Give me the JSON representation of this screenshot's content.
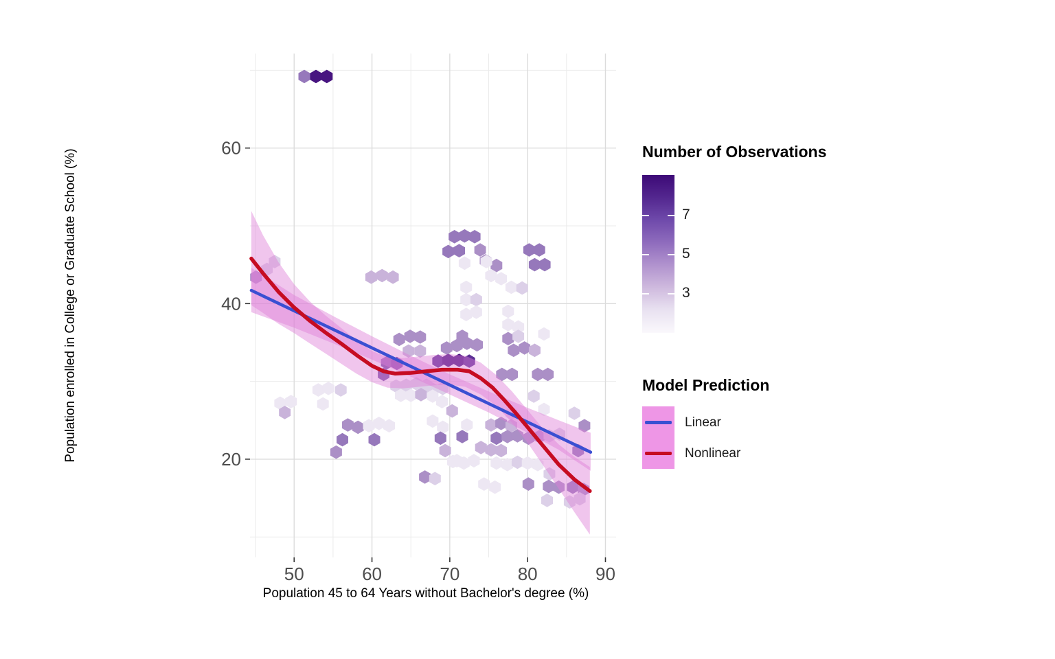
{
  "chart_data": {
    "type": "hexbin",
    "x_label": "Population 45 to 64 Years without Bachelor's degree (%)",
    "y_label": "Population enrolled in College or Graduate School (%)",
    "x_domain": [
      44.33,
      91.37
    ],
    "y_domain": [
      7.37,
      72.15
    ],
    "x_ticks_major": {
      "values": [
        50,
        60,
        70,
        80,
        90
      ],
      "labels": [
        "50",
        "60",
        "70",
        "80",
        "90"
      ]
    },
    "x_ticks_minor": [
      45,
      55,
      65,
      75,
      85
    ],
    "y_ticks_major": {
      "values": [
        20,
        40,
        60
      ],
      "labels": [
        "20",
        "40",
        "60"
      ]
    },
    "y_ticks_minor": [
      10,
      30,
      50,
      70
    ],
    "grid_major_color": "#dcdcdc",
    "grid_minor_color": "#ebebeb",
    "tick_mark_color": "#333333",
    "tick_label_color": "#4d4d4d",
    "hex_width_units": 1.5,
    "count_colors": {
      "1": "#ede7f3",
      "2": "#dcd0e8",
      "3": "#c9b3da",
      "4": "#ab8fc6",
      "5": "#9678bb",
      "6": "#7b54a6",
      "7": "#5d3095",
      "8": "#471480"
    },
    "hexes": [
      [
        51.3,
        69.2,
        5
      ],
      [
        52.8,
        69.2,
        8
      ],
      [
        54.2,
        69.2,
        8
      ],
      [
        45.1,
        43.4,
        4
      ],
      [
        46.5,
        44.4,
        2
      ],
      [
        47.5,
        45.4,
        2
      ],
      [
        59.9,
        43.4,
        3
      ],
      [
        61.3,
        43.6,
        3
      ],
      [
        62.7,
        43.4,
        3
      ],
      [
        70.6,
        48.6,
        5
      ],
      [
        71.9,
        48.7,
        5
      ],
      [
        73.2,
        48.6,
        5
      ],
      [
        69.8,
        46.7,
        5
      ],
      [
        71.2,
        46.8,
        5
      ],
      [
        73.9,
        46.9,
        4
      ],
      [
        71.9,
        45.2,
        1
      ],
      [
        74.6,
        45.5,
        4
      ],
      [
        76.0,
        44.9,
        4
      ],
      [
        80.2,
        46.9,
        5
      ],
      [
        81.5,
        46.9,
        5
      ],
      [
        80.9,
        45.0,
        5
      ],
      [
        82.2,
        45.0,
        5
      ],
      [
        74.7,
        45.4,
        1
      ],
      [
        75.3,
        43.6,
        1
      ],
      [
        76.6,
        43.2,
        1
      ],
      [
        77.9,
        42.1,
        1
      ],
      [
        79.3,
        42.0,
        2
      ],
      [
        72.1,
        42.1,
        1
      ],
      [
        72.1,
        40.5,
        1
      ],
      [
        73.4,
        40.5,
        2
      ],
      [
        72.1,
        38.6,
        1
      ],
      [
        73.4,
        38.9,
        1
      ],
      [
        77.5,
        39.0,
        1
      ],
      [
        77.5,
        37.3,
        1
      ],
      [
        78.8,
        37.0,
        1
      ],
      [
        77.5,
        35.5,
        4
      ],
      [
        78.8,
        35.8,
        2
      ],
      [
        78.2,
        34.0,
        4
      ],
      [
        79.6,
        34.3,
        4
      ],
      [
        80.9,
        34.0,
        3
      ],
      [
        82.1,
        36.1,
        1
      ],
      [
        63.5,
        35.4,
        4
      ],
      [
        64.9,
        35.8,
        4
      ],
      [
        66.2,
        35.7,
        4
      ],
      [
        64.7,
        33.9,
        3
      ],
      [
        66.2,
        33.9,
        3
      ],
      [
        61.9,
        32.4,
        6
      ],
      [
        63.2,
        32.3,
        7
      ],
      [
        61.5,
        30.9,
        6
      ],
      [
        68.5,
        32.6,
        7
      ],
      [
        69.8,
        32.7,
        8
      ],
      [
        71.2,
        32.7,
        8
      ],
      [
        72.5,
        32.6,
        7
      ],
      [
        69.6,
        34.3,
        4
      ],
      [
        70.9,
        34.6,
        4
      ],
      [
        72.2,
        34.9,
        4
      ],
      [
        73.5,
        34.7,
        4
      ],
      [
        71.6,
        35.8,
        4
      ],
      [
        63.1,
        29.4,
        2
      ],
      [
        64.4,
        29.5,
        2
      ],
      [
        65.7,
        29.7,
        2
      ],
      [
        67.0,
        29.5,
        2
      ],
      [
        63.7,
        28.2,
        1
      ],
      [
        65.0,
        28.2,
        1
      ],
      [
        66.3,
        28.3,
        3
      ],
      [
        76.7,
        30.9,
        4
      ],
      [
        78.0,
        30.9,
        4
      ],
      [
        81.3,
        30.9,
        4
      ],
      [
        82.6,
        30.9,
        4
      ],
      [
        80.8,
        28.1,
        2
      ],
      [
        82.1,
        26.4,
        1
      ],
      [
        77.9,
        25.9,
        1
      ],
      [
        48.2,
        27.2,
        1
      ],
      [
        49.6,
        27.4,
        1
      ],
      [
        48.8,
        26.0,
        3
      ],
      [
        53.1,
        28.9,
        1
      ],
      [
        54.4,
        29.1,
        1
      ],
      [
        56.0,
        28.9,
        2
      ],
      [
        53.7,
        27.1,
        1
      ],
      [
        56.9,
        24.4,
        4
      ],
      [
        58.2,
        24.1,
        4
      ],
      [
        56.2,
        22.5,
        5
      ],
      [
        55.4,
        20.9,
        4
      ],
      [
        59.6,
        24.3,
        1
      ],
      [
        60.9,
        24.6,
        1
      ],
      [
        62.2,
        24.3,
        1
      ],
      [
        60.3,
        22.5,
        5
      ],
      [
        66.8,
        17.7,
        4
      ],
      [
        68.1,
        17.5,
        2
      ],
      [
        67.8,
        29.0,
        2
      ],
      [
        69.1,
        29.1,
        2
      ],
      [
        67.8,
        28.1,
        1
      ],
      [
        69.0,
        27.4,
        1
      ],
      [
        70.3,
        26.2,
        3
      ],
      [
        67.8,
        24.9,
        1
      ],
      [
        69.1,
        24.1,
        1
      ],
      [
        72.2,
        24.4,
        1
      ],
      [
        68.8,
        22.7,
        5
      ],
      [
        71.6,
        22.9,
        5
      ],
      [
        69.4,
        21.1,
        3
      ],
      [
        70.9,
        19.8,
        1
      ],
      [
        75.3,
        24.4,
        3
      ],
      [
        76.6,
        24.6,
        4
      ],
      [
        77.9,
        24.3,
        3
      ],
      [
        76.0,
        22.7,
        5
      ],
      [
        77.4,
        22.9,
        4
      ],
      [
        78.7,
        23.0,
        4
      ],
      [
        74.0,
        21.5,
        3
      ],
      [
        75.3,
        21.2,
        3
      ],
      [
        76.6,
        21.1,
        3
      ],
      [
        80.1,
        22.7,
        4
      ],
      [
        81.5,
        22.9,
        4
      ],
      [
        82.8,
        23.0,
        2
      ],
      [
        84.1,
        23.2,
        2
      ],
      [
        86.5,
        21.1,
        5
      ],
      [
        87.3,
        24.3,
        4
      ],
      [
        86.0,
        25.9,
        2
      ],
      [
        70.4,
        19.7,
        1
      ],
      [
        71.8,
        19.5,
        1
      ],
      [
        73.1,
        19.8,
        1
      ],
      [
        76.0,
        19.5,
        1
      ],
      [
        77.4,
        19.3,
        1
      ],
      [
        78.7,
        19.6,
        2
      ],
      [
        80.0,
        19.5,
        1
      ],
      [
        81.3,
        19.3,
        1
      ],
      [
        82.8,
        18.1,
        2
      ],
      [
        74.4,
        16.8,
        1
      ],
      [
        75.8,
        16.4,
        1
      ],
      [
        80.1,
        16.8,
        4
      ],
      [
        82.7,
        16.5,
        4
      ],
      [
        84.0,
        16.4,
        4
      ],
      [
        85.8,
        16.4,
        5
      ],
      [
        87.2,
        16.1,
        4
      ],
      [
        85.4,
        14.5,
        2
      ],
      [
        86.7,
        14.9,
        2
      ],
      [
        82.5,
        14.7,
        2
      ]
    ],
    "models": {
      "linear": {
        "name": "Linear",
        "color": "#3a4fd2",
        "points": [
          [
            44.5,
            41.7
          ],
          [
            88.1,
            20.9
          ]
        ]
      },
      "nonlinear": {
        "name": "Nonlinear",
        "color": "#c60c22",
        "points": [
          [
            44.5,
            45.8
          ],
          [
            46,
            43.9
          ],
          [
            48,
            41.5
          ],
          [
            50,
            39.5
          ],
          [
            52,
            37.8
          ],
          [
            54,
            36.3
          ],
          [
            56,
            34.9
          ],
          [
            58,
            33.4
          ],
          [
            60,
            32.0
          ],
          [
            61.5,
            31.3
          ],
          [
            63,
            31.0
          ],
          [
            65,
            31.1
          ],
          [
            67,
            31.3
          ],
          [
            69,
            31.5
          ],
          [
            71,
            31.5
          ],
          [
            72.5,
            31.3
          ],
          [
            74,
            30.4
          ],
          [
            75.5,
            29.2
          ],
          [
            77,
            27.6
          ],
          [
            78.5,
            25.9
          ],
          [
            80,
            24.1
          ],
          [
            82,
            21.7
          ],
          [
            84,
            19.3
          ],
          [
            86,
            17.4
          ],
          [
            88,
            15.9
          ]
        ]
      }
    },
    "ribbons": {
      "fill": "#dd7fd6",
      "opacity": 0.45,
      "linear": {
        "upper": [
          [
            44.5,
            44.6
          ],
          [
            50,
            41.1
          ],
          [
            55,
            38.4
          ],
          [
            60,
            35.8
          ],
          [
            65,
            33.3
          ],
          [
            70,
            30.9
          ],
          [
            75,
            28.7
          ],
          [
            80,
            26.6
          ],
          [
            84,
            25.0
          ],
          [
            88.1,
            23.4
          ]
        ],
        "lower": [
          [
            44.5,
            38.9
          ],
          [
            50,
            36.9
          ],
          [
            55,
            34.9
          ],
          [
            60,
            32.8
          ],
          [
            65,
            30.6
          ],
          [
            70,
            28.3
          ],
          [
            75,
            26.0
          ],
          [
            80,
            23.4
          ],
          [
            84,
            21.2
          ],
          [
            88.1,
            18.5
          ]
        ]
      },
      "nonlinear": {
        "upper": [
          [
            44.5,
            51.9
          ],
          [
            46,
            48.8
          ],
          [
            48,
            45.3
          ],
          [
            50,
            42.5
          ],
          [
            52,
            40.3
          ],
          [
            54,
            38.5
          ],
          [
            56,
            36.9
          ],
          [
            58,
            35.3
          ],
          [
            60,
            33.9
          ],
          [
            62,
            33.1
          ],
          [
            64,
            33.0
          ],
          [
            66,
            33.2
          ],
          [
            68,
            33.4
          ],
          [
            70,
            33.5
          ],
          [
            72,
            33.3
          ],
          [
            74,
            32.4
          ],
          [
            76,
            30.8
          ],
          [
            78,
            28.7
          ],
          [
            80,
            26.3
          ],
          [
            82,
            23.9
          ],
          [
            84,
            21.9
          ],
          [
            86,
            20.3
          ],
          [
            88,
            19.0
          ]
        ],
        "lower": [
          [
            44.5,
            39.8
          ],
          [
            46,
            38.8
          ],
          [
            48,
            37.4
          ],
          [
            50,
            36.2
          ],
          [
            52,
            34.9
          ],
          [
            54,
            33.6
          ],
          [
            56,
            32.3
          ],
          [
            58,
            31.0
          ],
          [
            60,
            29.9
          ],
          [
            62,
            29.2
          ],
          [
            64,
            29.1
          ],
          [
            66,
            29.3
          ],
          [
            68,
            29.5
          ],
          [
            70,
            29.6
          ],
          [
            72,
            29.3
          ],
          [
            74,
            28.3
          ],
          [
            76,
            26.8
          ],
          [
            78,
            24.7
          ],
          [
            80,
            22.1
          ],
          [
            82,
            19.2
          ],
          [
            84,
            16.2
          ],
          [
            86,
            13.2
          ],
          [
            88,
            10.3
          ]
        ]
      }
    }
  },
  "legend_fill": {
    "title": "Number of Observations",
    "ticks": [
      {
        "label": "7",
        "frac": 0.257
      },
      {
        "label": "5",
        "frac": 0.504
      },
      {
        "label": "3",
        "frac": 0.752
      }
    ],
    "gradient": [
      "#3d0a77",
      "#53278f",
      "#6f4aab",
      "#8f6cbd",
      "#b193ce",
      "#cfbade",
      "#e9e2f1",
      "#faf8fc"
    ]
  },
  "legend_model": {
    "title": "Model Prediction",
    "swatch_color": "#ee96e6",
    "items": [
      {
        "label": "Linear",
        "color": "#3a4fd2"
      },
      {
        "label": "Nonlinear",
        "color": "#c60c22"
      }
    ]
  }
}
